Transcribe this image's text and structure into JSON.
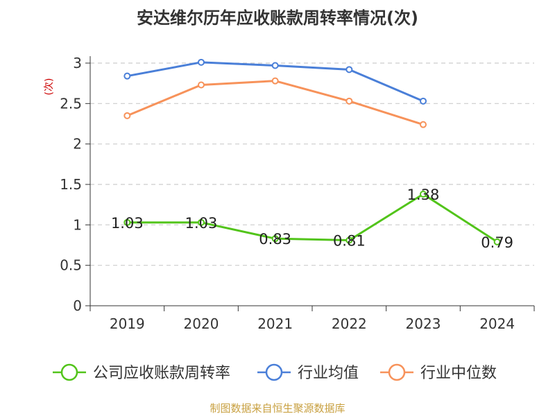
{
  "chart_data": {
    "type": "line",
    "title": "安达维尔历年应收账款周转率情况(次)",
    "ylabel": "(次)",
    "categories": [
      "2019",
      "2020",
      "2021",
      "2022",
      "2023",
      "2024"
    ],
    "ylim": [
      0,
      3
    ],
    "yticks": [
      "0",
      "0.5",
      "1",
      "1.5",
      "2",
      "2.5",
      "3"
    ],
    "grid": true,
    "legend_position": "bottom",
    "series": [
      {
        "name": "公司应收账款周转率",
        "color": "#52c41a",
        "values": [
          1.03,
          1.03,
          0.83,
          0.81,
          1.38,
          0.79
        ],
        "labels": [
          "1.03",
          "1.03",
          "0.83",
          "0.81",
          "1.38",
          "0.79"
        ]
      },
      {
        "name": "行业均值",
        "color": "#4a7fd8",
        "values": [
          2.84,
          3.01,
          2.97,
          2.92,
          2.53,
          null
        ]
      },
      {
        "name": "行业中位数",
        "color": "#f7925a",
        "values": [
          2.35,
          2.73,
          2.78,
          2.53,
          2.24,
          null
        ]
      }
    ]
  },
  "source": "制图数据来自恒生聚源数据库"
}
